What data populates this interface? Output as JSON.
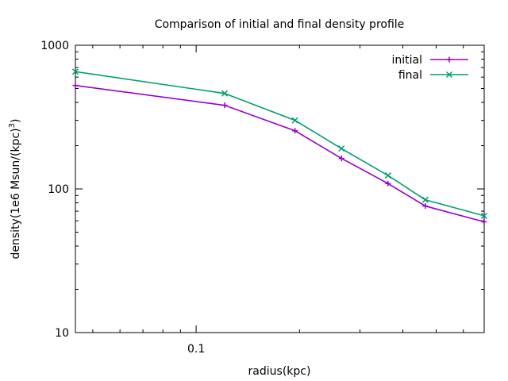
{
  "chart_data": {
    "type": "line",
    "title": "Comparison of initial and final density profile",
    "xlabel": "radius(kpc)",
    "ylabel": "density(1e6 Msun/(kpc)3)",
    "ylabel_parts": {
      "base": "density(1e6 Msun/(kpc)",
      "sup": "3",
      "close": ")"
    },
    "x_scale": "log",
    "y_scale": "log",
    "xlim": [
      0.0445,
      0.69
    ],
    "ylim": [
      10,
      1000
    ],
    "x_tick_labels": [
      {
        "value": 0.1,
        "label": "0.1"
      }
    ],
    "y_tick_labels": [
      {
        "value": 10,
        "label": "10"
      },
      {
        "value": 100,
        "label": "100"
      },
      {
        "value": 1000,
        "label": "1000"
      }
    ],
    "grid": false,
    "legend_position": "top-right",
    "series": [
      {
        "name": "initial",
        "color": "#9400d3",
        "marker": "plus",
        "x": [
          0.0445,
          0.121,
          0.194,
          0.265,
          0.362,
          0.465,
          0.69
        ],
        "y": [
          525,
          382,
          254,
          163,
          109,
          76,
          59
        ]
      },
      {
        "name": "final",
        "color": "#009e73",
        "marker": "cross",
        "x": [
          0.0445,
          0.121,
          0.194,
          0.265,
          0.362,
          0.465,
          0.69
        ],
        "y": [
          655,
          462,
          300,
          191,
          124,
          84,
          65
        ]
      }
    ]
  }
}
